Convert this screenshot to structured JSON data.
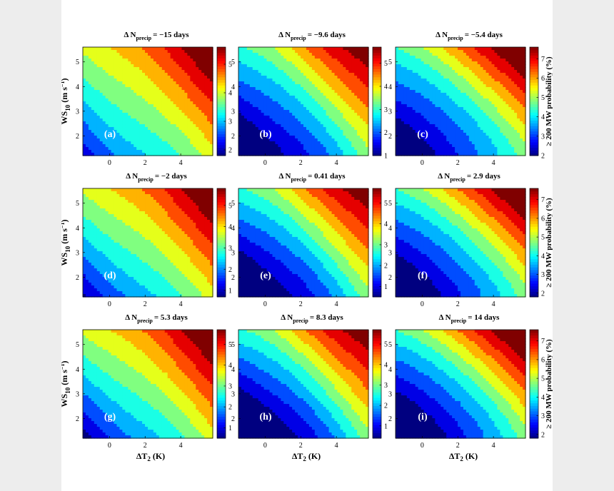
{
  "chart_data": {
    "type": "heatmap",
    "layout": "3x3 grid of filled contour panels",
    "xlabel": "ΔT",
    "xlabel_sub": "2",
    "xlabel_unit": "(K)",
    "ylabel": "WS",
    "ylabel_sub": "10",
    "ylabel_unit_main": "(m s",
    "ylabel_unit_sup": "−1",
    "ylabel_unit_end": ")",
    "colorbar_label": "≥ 200 MW probability (%)",
    "xlim": [
      -1.5,
      5.8
    ],
    "ylim": [
      1.2,
      5.6
    ],
    "x_ticks": [
      "0",
      "2",
      "4"
    ],
    "x_tick_values": [
      0,
      2,
      4
    ],
    "y_ticks": [
      "2",
      "3",
      "4",
      "5"
    ],
    "y_tick_values": [
      2,
      3,
      4,
      5
    ],
    "colorbar_ticks": {
      "col1": [
        "1",
        "2",
        "3",
        "4",
        "5"
      ],
      "col2": [
        "1",
        "2",
        "3",
        "4",
        "5"
      ],
      "col3": [
        "2",
        "3",
        "4",
        "5",
        "6",
        "7"
      ]
    },
    "panels": [
      {
        "letter": "(a)",
        "title_prefix": "Δ N",
        "title_sub": "precip",
        "title_value": "= −15 days",
        "min": 1.8,
        "max": 5.6
      },
      {
        "letter": "(b)",
        "title_prefix": "Δ N",
        "title_sub": "precip",
        "title_value": "= −9.6 days",
        "min": 1.0,
        "max": 5.7
      },
      {
        "letter": "(c)",
        "title_prefix": "Δ N",
        "title_sub": "precip",
        "title_value": "= −5.4 days",
        "min": 2.0,
        "max": 7.6
      },
      {
        "letter": "(d)",
        "title_prefix": "Δ N",
        "title_sub": "precip",
        "title_value": "= −2 days",
        "min": 0.7,
        "max": 5.8
      },
      {
        "letter": "(e)",
        "title_prefix": "Δ N",
        "title_sub": "precip",
        "title_value": "= 0.41 days",
        "min": 0.5,
        "max": 5.7
      },
      {
        "letter": "(f)",
        "title_prefix": "Δ N",
        "title_sub": "precip",
        "title_value": "= 2.9 days",
        "min": 1.8,
        "max": 7.6
      },
      {
        "letter": "(g)",
        "title_prefix": "Δ N",
        "title_sub": "precip",
        "title_value": "= 5.3 days",
        "min": 0.5,
        "max": 5.7
      },
      {
        "letter": "(h)",
        "title_prefix": "Δ N",
        "title_sub": "precip",
        "title_value": "= 8.3 days",
        "min": 0.4,
        "max": 5.7
      },
      {
        "letter": "(i)",
        "title_prefix": "Δ N",
        "title_sub": "precip",
        "title_value": "= 14 days",
        "min": 1.8,
        "max": 7.6
      }
    ]
  }
}
